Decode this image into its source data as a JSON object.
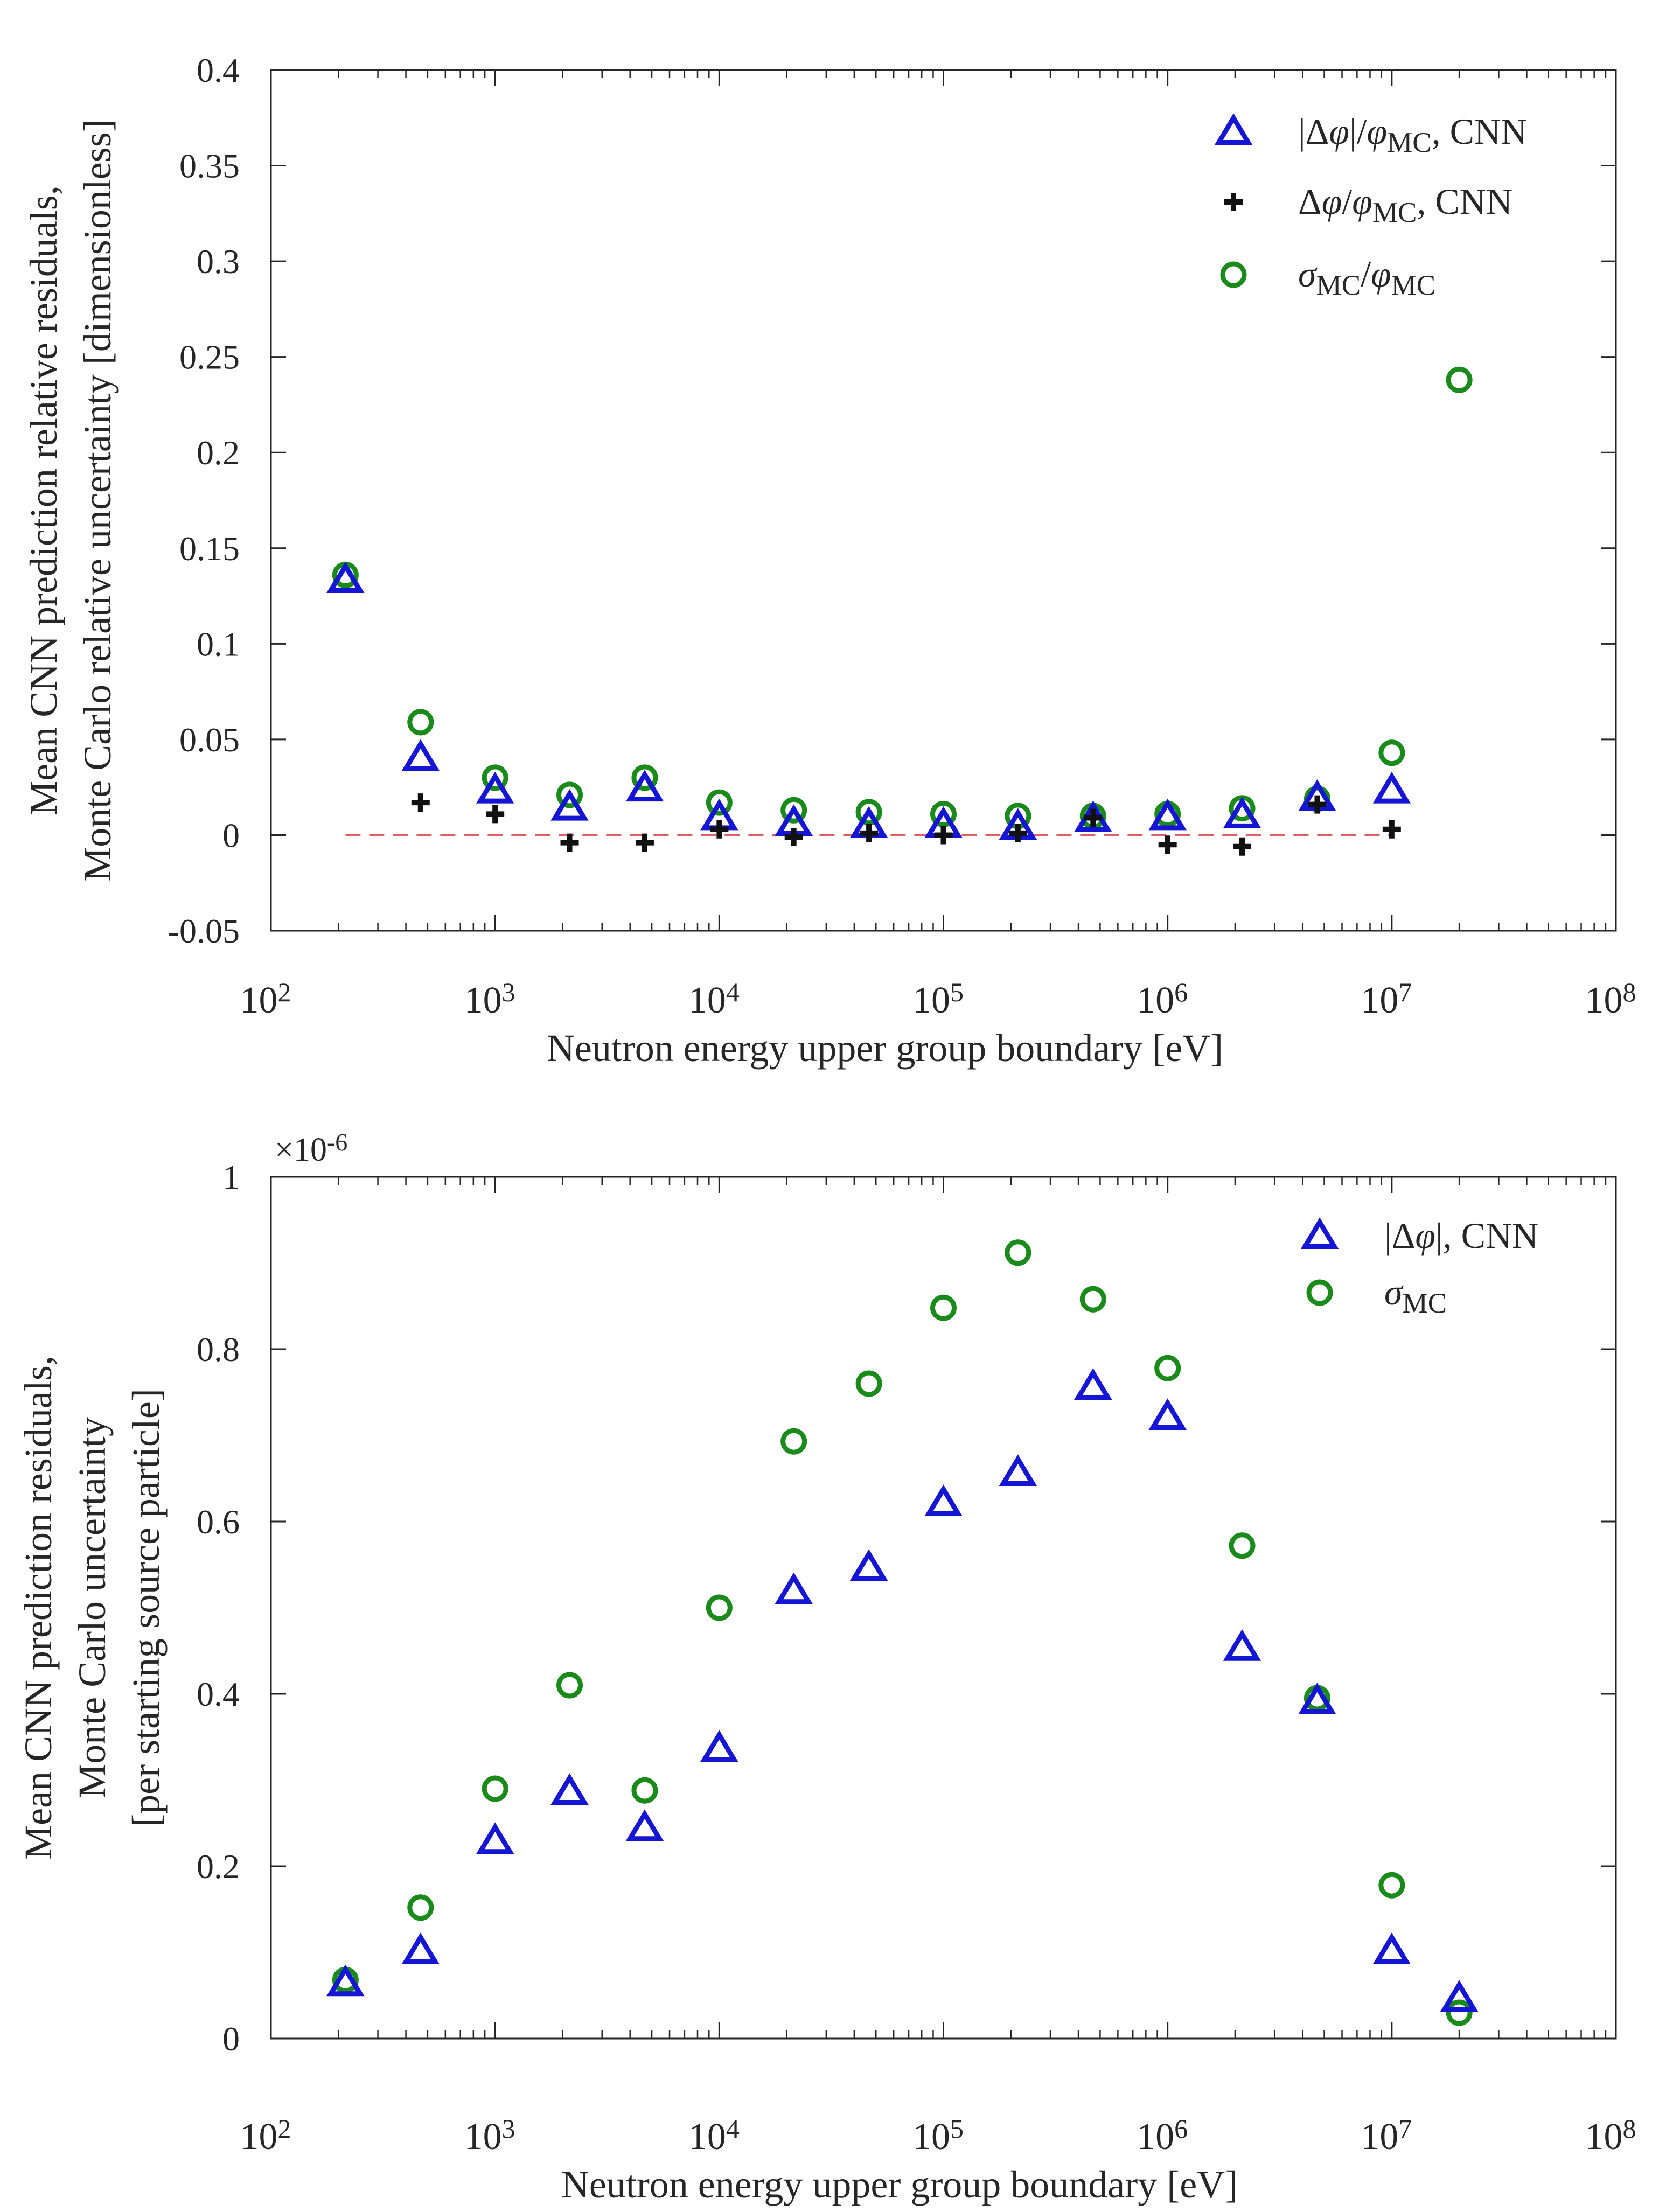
{
  "chart_data": [
    {
      "type": "scatter",
      "title": "",
      "xlabel": "Neutron energy upper group boundary [eV]",
      "ylabel_lines": [
        "Mean CNN prediction relative residuals,",
        "Monte Carlo relative uncertainty [dimensionless]"
      ],
      "xscale": "log",
      "xlim": [
        100,
        100000000
      ],
      "ylim": [
        -0.05,
        0.4
      ],
      "xticks": [
        {
          "value": 100,
          "base": "10",
          "exp": "2"
        },
        {
          "value": 1000,
          "base": "10",
          "exp": "3"
        },
        {
          "value": 10000,
          "base": "10",
          "exp": "4"
        },
        {
          "value": 100000,
          "base": "10",
          "exp": "5"
        },
        {
          "value": 1000000,
          "base": "10",
          "exp": "6"
        },
        {
          "value": 10000000,
          "base": "10",
          "exp": "7"
        },
        {
          "value": 100000000,
          "base": "10",
          "exp": "8"
        }
      ],
      "yticks": [
        {
          "value": -0.05,
          "label": "-0.05"
        },
        {
          "value": 0,
          "label": "0"
        },
        {
          "value": 0.05,
          "label": "0.05"
        },
        {
          "value": 0.1,
          "label": "0.1"
        },
        {
          "value": 0.15,
          "label": "0.15"
        },
        {
          "value": 0.2,
          "label": "0.2"
        },
        {
          "value": 0.25,
          "label": "0.25"
        },
        {
          "value": 0.3,
          "label": "0.3"
        },
        {
          "value": 0.35,
          "label": "0.35"
        },
        {
          "value": 0.4,
          "label": "0.4"
        }
      ],
      "grid": false,
      "legend_position": "top-right",
      "reference_line": {
        "y": 0,
        "xmin": 215,
        "xmax": 10000000,
        "color": "#e06060",
        "style": "dashed"
      },
      "x": [
        215,
        465,
        1000,
        2150,
        4650,
        10000,
        21500,
        46500,
        100000,
        215000,
        465000,
        1000000,
        2150000,
        4650000,
        10000000,
        20000000
      ],
      "series": [
        {
          "name": "|Δφ|/φMC, CNN",
          "legend_parts": [
            {
              "t": "|Δ"
            },
            {
              "t": "φ",
              "i": true
            },
            {
              "t": "|/"
            },
            {
              "t": "φ",
              "i": true
            },
            {
              "t": "MC",
              "sub": true
            },
            {
              "t": ", CNN"
            }
          ],
          "marker": "triangle",
          "color": "#1515d4",
          "values": [
            0.135,
            0.042,
            0.025,
            0.016,
            0.026,
            0.011,
            0.008,
            0.007,
            0.007,
            0.006,
            0.01,
            0.011,
            0.012,
            0.021,
            0.025,
            null
          ]
        },
        {
          "name": "Δφ/φMC, CNN",
          "legend_parts": [
            {
              "t": "Δ"
            },
            {
              "t": "φ",
              "i": true
            },
            {
              "t": "/"
            },
            {
              "t": "φ",
              "i": true
            },
            {
              "t": "MC",
              "sub": true
            },
            {
              "t": ", CNN"
            }
          ],
          "marker": "plus",
          "color": "#111111",
          "values": [
            null,
            0.017,
            0.011,
            -0.004,
            -0.004,
            0.003,
            -0.001,
            0.001,
            0.0,
            0.001,
            0.009,
            -0.005,
            -0.006,
            0.016,
            0.003,
            null
          ]
        },
        {
          "name": "σMC/φMC",
          "legend_parts": [
            {
              "t": "σ",
              "i": true
            },
            {
              "t": "MC",
              "sub": true
            },
            {
              "t": "/"
            },
            {
              "t": "φ",
              "i": true
            },
            {
              "t": "MC",
              "sub": true
            }
          ],
          "marker": "circle",
          "color": "#1a8a1a",
          "values": [
            0.136,
            0.059,
            0.03,
            0.021,
            0.03,
            0.017,
            0.013,
            0.012,
            0.011,
            0.01,
            0.01,
            0.011,
            0.014,
            0.019,
            0.043,
            0.238
          ]
        }
      ]
    },
    {
      "type": "scatter",
      "title": "",
      "xlabel": "Neutron energy upper group boundary [eV]",
      "ylabel_lines": [
        "Mean CNN prediction  residuals,",
        "Monte Carlo uncertainty",
        "[per starting source particle]"
      ],
      "xscale": "log",
      "xlim": [
        100,
        100000000
      ],
      "ylim": [
        0,
        1
      ],
      "y_multiplier": {
        "base": "×10",
        "exp": "-6"
      },
      "xticks": [
        {
          "value": 100,
          "base": "10",
          "exp": "2"
        },
        {
          "value": 1000,
          "base": "10",
          "exp": "3"
        },
        {
          "value": 10000,
          "base": "10",
          "exp": "4"
        },
        {
          "value": 100000,
          "base": "10",
          "exp": "5"
        },
        {
          "value": 1000000,
          "base": "10",
          "exp": "6"
        },
        {
          "value": 10000000,
          "base": "10",
          "exp": "7"
        },
        {
          "value": 100000000,
          "base": "10",
          "exp": "8"
        }
      ],
      "yticks": [
        {
          "value": 0,
          "label": "0"
        },
        {
          "value": 0.2,
          "label": "0.2"
        },
        {
          "value": 0.4,
          "label": "0.4"
        },
        {
          "value": 0.6,
          "label": "0.6"
        },
        {
          "value": 0.8,
          "label": "0.8"
        },
        {
          "value": 1,
          "label": "1"
        }
      ],
      "grid": false,
      "legend_position": "top-right",
      "x": [
        215,
        465,
        1000,
        2150,
        4650,
        10000,
        21500,
        46500,
        100000,
        215000,
        465000,
        1000000,
        2150000,
        4650000,
        10000000,
        20000000
      ],
      "series": [
        {
          "name": "|Δφ|, CNN",
          "legend_parts": [
            {
              "t": "|Δ"
            },
            {
              "t": "φ",
              "i": true
            },
            {
              "t": "|, CNN"
            }
          ],
          "marker": "triangle",
          "color": "#1515d4",
          "values": [
            0.068,
            0.105,
            0.233,
            0.29,
            0.248,
            0.34,
            0.523,
            0.55,
            0.625,
            0.66,
            0.76,
            0.725,
            0.457,
            0.395,
            0.105,
            0.05
          ]
        },
        {
          "name": "σMC",
          "legend_parts": [
            {
              "t": "σ",
              "i": true
            },
            {
              "t": "MC",
              "sub": true
            }
          ],
          "marker": "circle",
          "color": "#1a8a1a",
          "values": [
            0.068,
            0.152,
            0.29,
            0.41,
            0.288,
            0.5,
            0.693,
            0.76,
            0.848,
            0.912,
            0.858,
            0.778,
            0.572,
            0.395,
            0.178,
            0.03
          ]
        }
      ]
    }
  ]
}
